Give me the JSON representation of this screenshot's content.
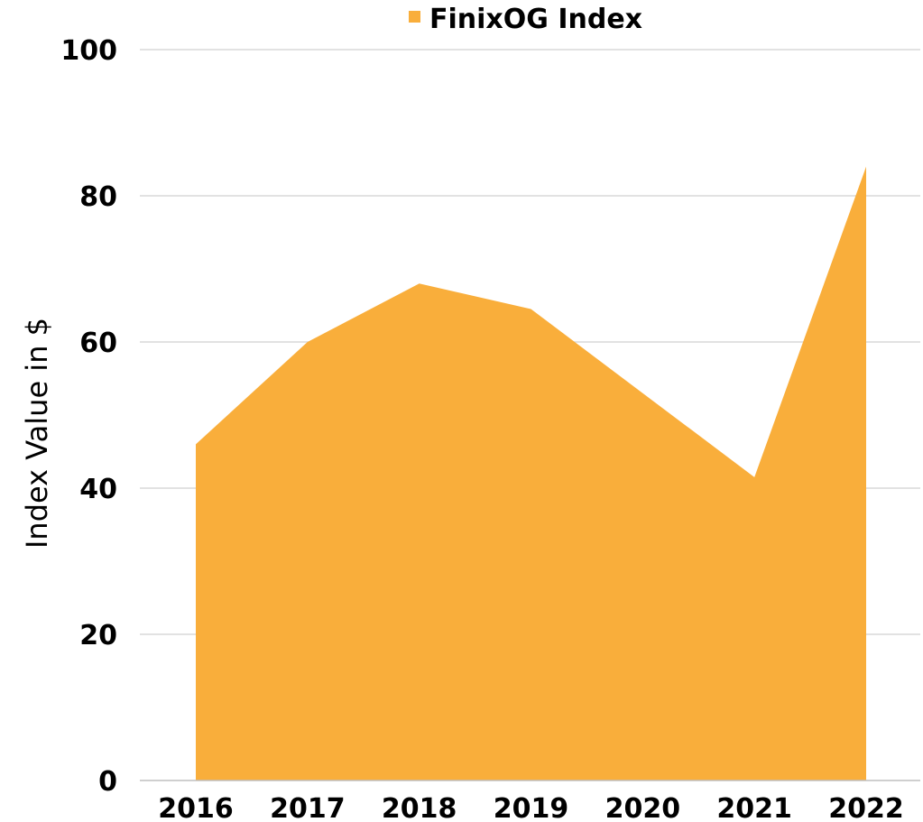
{
  "chart_data": {
    "type": "area",
    "categories": [
      "2016",
      "2017",
      "2018",
      "2019",
      "2020",
      "2021",
      "2022"
    ],
    "series": [
      {
        "name": "FinixOG Index",
        "color": "#f9ae3b",
        "values": [
          46,
          60,
          68,
          64.5,
          53,
          41.5,
          84
        ]
      }
    ],
    "ylabel": "Index Value in $",
    "xlabel": "",
    "ylim": [
      0,
      100
    ],
    "yticks": [
      0,
      20,
      40,
      60,
      80,
      100
    ],
    "grid": true,
    "legend_position": "top"
  }
}
